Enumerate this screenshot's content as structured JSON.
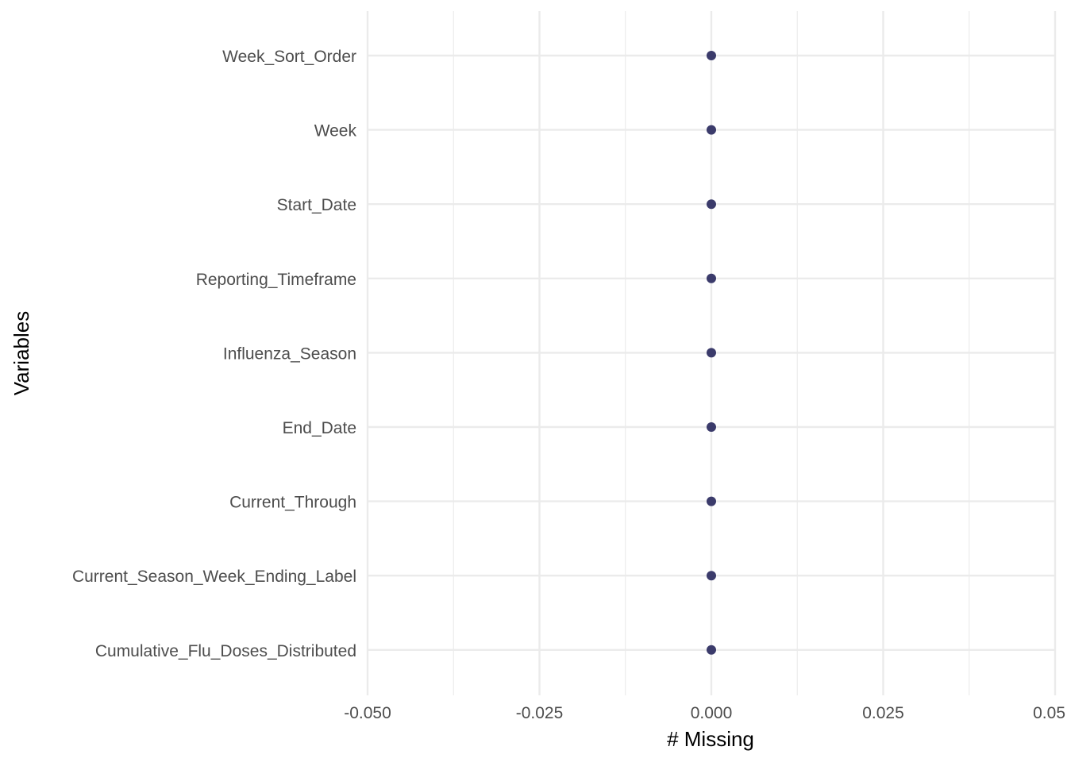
{
  "chart_data": {
    "type": "scatter",
    "title": "",
    "xlabel": "# Missing",
    "ylabel": "Variables",
    "xlim": [
      -0.05,
      0.05
    ],
    "x_ticks": [
      -0.05,
      -0.025,
      0.0,
      0.025,
      0.05
    ],
    "x_tick_labels": [
      "-0.050",
      "-0.025",
      "0.000",
      "0.025",
      "0.05"
    ],
    "categories": [
      "Week_Sort_Order",
      "Week",
      "Start_Date",
      "Reporting_Timeframe",
      "Influenza_Season",
      "End_Date",
      "Current_Through",
      "Current_Season_Week_Ending_Label",
      "Cumulative_Flu_Doses_Distributed"
    ],
    "values": [
      0,
      0,
      0,
      0,
      0,
      0,
      0,
      0,
      0
    ],
    "grid": true,
    "point_color": "#3b3b6b",
    "grid_color": "#ebebeb",
    "legend": "none"
  }
}
